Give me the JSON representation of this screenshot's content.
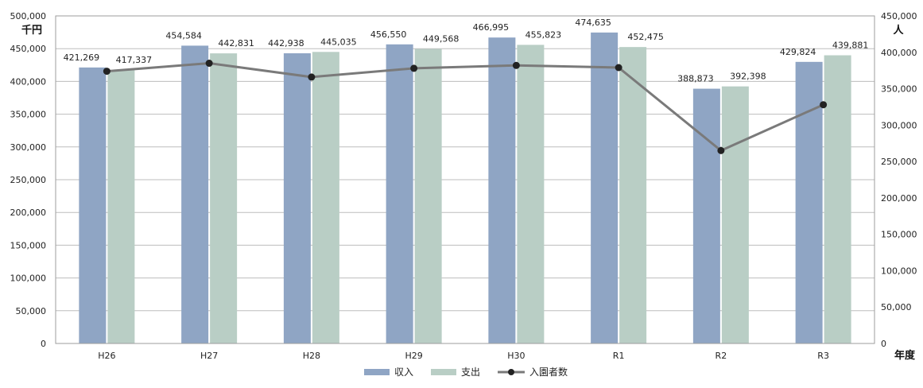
{
  "chart_data": {
    "type": "bar",
    "categories": [
      "H26",
      "H27",
      "H28",
      "H29",
      "H30",
      "R1",
      "R2",
      "R3"
    ],
    "series": [
      {
        "name": "収入",
        "kind": "bar",
        "axis": "left",
        "color": "#8fa5c4",
        "values": [
          421269,
          454584,
          442938,
          456550,
          466995,
          474635,
          388873,
          429824
        ],
        "labels": [
          "421,269",
          "454,584",
          "442,938",
          "456,550",
          "466,995",
          "474,635",
          "388,873",
          "429,824"
        ]
      },
      {
        "name": "支出",
        "kind": "bar",
        "axis": "left",
        "color": "#b9cec5",
        "values": [
          417337,
          442831,
          445035,
          449568,
          455823,
          452475,
          392398,
          439881
        ],
        "labels": [
          "417,337",
          "442,831",
          "445,035",
          "449,568",
          "455,823",
          "452,475",
          "392,398",
          "439,881"
        ]
      },
      {
        "name": "入園者数",
        "kind": "line",
        "axis": "right",
        "color": "#7a7a7a",
        "values": [
          374000,
          385000,
          366000,
          378000,
          382000,
          379000,
          265000,
          328000
        ]
      }
    ],
    "y_left": {
      "unit": "千円",
      "min": 0,
      "max": 500000,
      "ticks": [
        "0",
        "50,000",
        "100,000",
        "150,000",
        "200,000",
        "250,000",
        "300,000",
        "350,000",
        "400,000",
        "450,000",
        "500,000"
      ]
    },
    "y_right": {
      "unit": "人",
      "min": 0,
      "max": 450000,
      "ticks": [
        "0",
        "50,000",
        "100,000",
        "150,000",
        "200,000",
        "250,000",
        "300,000",
        "350,000",
        "400,000",
        "450,000"
      ]
    },
    "x_unit": "年度",
    "grid": true,
    "legend_position": "bottom-center"
  }
}
